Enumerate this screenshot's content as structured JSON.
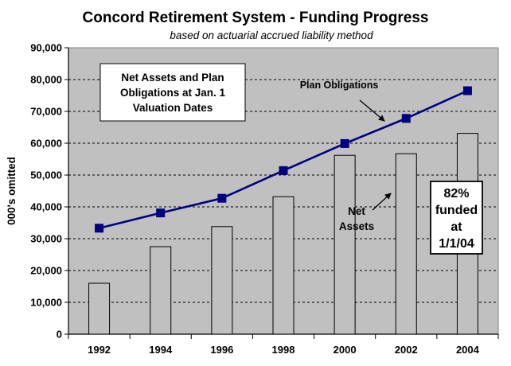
{
  "chart_data": {
    "type": "bar",
    "title": "Concord Retirement System - Funding Progress",
    "subtitle": "based on actuarial accrued liability method",
    "ylabel": "000's omitted",
    "xlabel": "",
    "categories": [
      "1992",
      "1994",
      "1996",
      "1998",
      "2000",
      "2002",
      "2004"
    ],
    "ylim": [
      0,
      90000
    ],
    "yticks": [
      0,
      10000,
      20000,
      30000,
      40000,
      50000,
      60000,
      70000,
      80000,
      90000
    ],
    "ytick_labels": [
      "0",
      "10,000",
      "20,000",
      "30,000",
      "40,000",
      "50,000",
      "60,000",
      "70,000",
      "80,000",
      "90,000"
    ],
    "grid": true,
    "plot_background": "#c0c0c0",
    "series": [
      {
        "name": "Net Assets",
        "kind": "bar",
        "color": "#c0c0c0",
        "values": [
          16000,
          27500,
          33800,
          43200,
          56200,
          56700,
          63100
        ]
      },
      {
        "name": "Plan Obligations",
        "kind": "line",
        "color": "#000080",
        "values": [
          33300,
          38100,
          42700,
          51400,
          59900,
          67800,
          76500
        ]
      }
    ],
    "annotations": {
      "box_text": [
        "Net Assets and Plan",
        "Obligations at Jan. 1",
        "Valuation Dates"
      ],
      "plan_obligations_label": "Plan Obligations",
      "net_assets_label": [
        "Net",
        "Assets"
      ],
      "funded_text": [
        "82%",
        "funded",
        "at",
        "1/1/04"
      ]
    }
  }
}
